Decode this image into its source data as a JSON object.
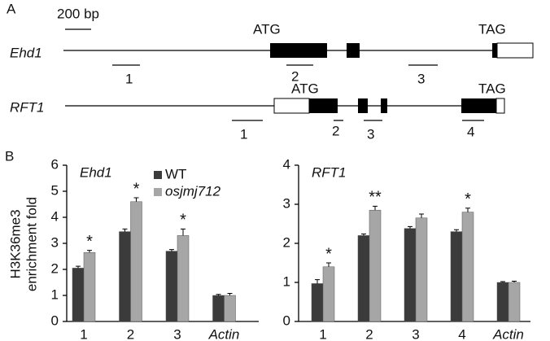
{
  "panel_a": {
    "label": "A",
    "scale": "200 bp",
    "genes": [
      {
        "name": "Ehd1",
        "start": "ATG",
        "stop": "TAG",
        "amplicons": [
          "1",
          "2",
          "3"
        ]
      },
      {
        "name": "RFT1",
        "start": "ATG",
        "stop": "TAG",
        "amplicons": [
          "1",
          "2",
          "3",
          "4"
        ]
      }
    ]
  },
  "panel_b": {
    "label": "B"
  },
  "chart_data": [
    {
      "type": "bar",
      "title": "Ehd1",
      "y_label": [
        "H3K36me3",
        "enrichment fold"
      ],
      "categories": [
        "1",
        "2",
        "3",
        "Actin"
      ],
      "ylim": [
        0,
        6
      ],
      "yticks": [
        0,
        1,
        2,
        3,
        4,
        5,
        6
      ],
      "legend": "top",
      "series": [
        {
          "name": "WT",
          "color": "#3b3b3b",
          "values": [
            2.05,
            3.45,
            2.7,
            1.0
          ],
          "errors": [
            0.07,
            0.1,
            0.06,
            0.04
          ]
        },
        {
          "name": "osjmj712",
          "color": "#a6a6a6",
          "values": [
            2.65,
            4.6,
            3.3,
            1.0
          ],
          "errors": [
            0.08,
            0.15,
            0.25,
            0.08
          ]
        }
      ],
      "annotations": [
        "*",
        "*",
        "*",
        null
      ]
    },
    {
      "type": "bar",
      "title": "RFT1",
      "categories": [
        "1",
        "2",
        "3",
        "4",
        "Actin"
      ],
      "ylim": [
        0,
        4
      ],
      "yticks": [
        0,
        1,
        2,
        3,
        4
      ],
      "series": [
        {
          "name": "WT",
          "color": "#3b3b3b",
          "values": [
            0.97,
            2.2,
            2.38,
            2.3,
            1.0
          ],
          "errors": [
            0.1,
            0.04,
            0.05,
            0.05,
            0.02
          ]
        },
        {
          "name": "osjmj712",
          "color": "#a6a6a6",
          "values": [
            1.4,
            2.85,
            2.65,
            2.8,
            1.0
          ],
          "errors": [
            0.1,
            0.1,
            0.1,
            0.1,
            0.03
          ]
        }
      ],
      "annotations": [
        "*",
        "**",
        null,
        "*",
        null
      ]
    }
  ]
}
